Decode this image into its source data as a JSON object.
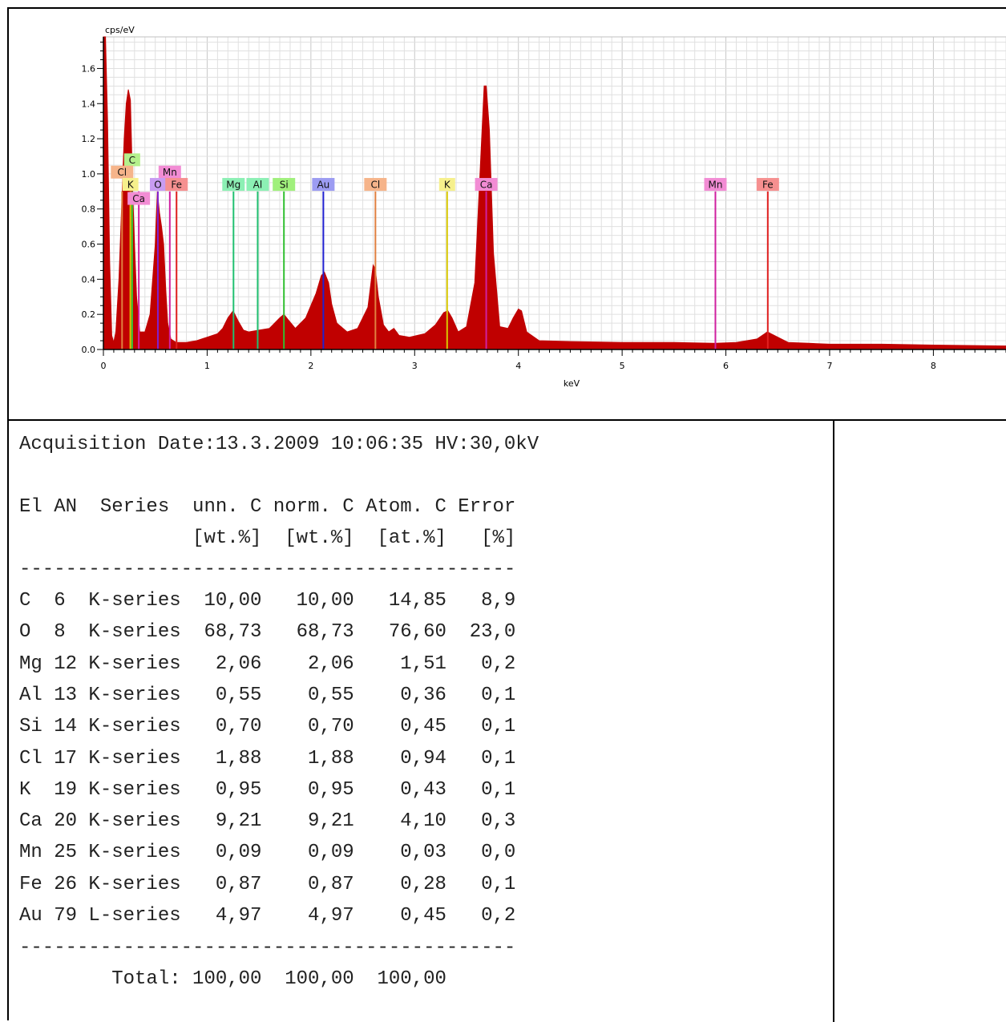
{
  "chart_data": {
    "type": "area",
    "title": "",
    "xlabel": "keV",
    "ylabel": "cps/eV",
    "xlim": [
      0,
      8.7
    ],
    "ylim": [
      0,
      1.78
    ],
    "x_ticks": [
      "0",
      "1",
      "2",
      "3",
      "4",
      "5",
      "6",
      "7",
      "8"
    ],
    "y_ticks": [
      "0.0",
      "0.2",
      "0.4",
      "0.6",
      "0.8",
      "1.0",
      "1.2",
      "1.4",
      "1.6"
    ],
    "grid": true,
    "spectrum_color": "#c00000",
    "series": [
      {
        "x": [
          0.0,
          0.02,
          0.04,
          0.06,
          0.08,
          0.1,
          0.12,
          0.15,
          0.2,
          0.22,
          0.24,
          0.26,
          0.27,
          0.28,
          0.3,
          0.32,
          0.35,
          0.4,
          0.45,
          0.5,
          0.52,
          0.54,
          0.56,
          0.58,
          0.6,
          0.62,
          0.65,
          0.7,
          0.8,
          0.9,
          1.0,
          1.1,
          1.15,
          1.2,
          1.25,
          1.3,
          1.35,
          1.4,
          1.5,
          1.6,
          1.7,
          1.74,
          1.78,
          1.85,
          1.95,
          2.05,
          2.1,
          2.13,
          2.17,
          2.2,
          2.25,
          2.35,
          2.45,
          2.55,
          2.6,
          2.62,
          2.65,
          2.7,
          2.75,
          2.8,
          2.85,
          2.95,
          3.1,
          3.2,
          3.28,
          3.32,
          3.36,
          3.42,
          3.5,
          3.58,
          3.63,
          3.67,
          3.69,
          3.72,
          3.76,
          3.82,
          3.9,
          3.95,
          4.0,
          4.03,
          4.08,
          4.2,
          4.5,
          5.0,
          5.5,
          5.9,
          6.1,
          6.3,
          6.4,
          6.5,
          6.6,
          6.8,
          7.0,
          7.5,
          8.0,
          8.7
        ],
        "y": [
          1.78,
          1.78,
          1.3,
          0.5,
          0.08,
          0.04,
          0.1,
          0.4,
          1.2,
          1.4,
          1.48,
          1.42,
          1.2,
          0.95,
          0.6,
          0.3,
          0.1,
          0.1,
          0.2,
          0.6,
          0.9,
          0.78,
          0.7,
          0.6,
          0.35,
          0.15,
          0.06,
          0.04,
          0.04,
          0.05,
          0.07,
          0.09,
          0.12,
          0.18,
          0.22,
          0.16,
          0.11,
          0.1,
          0.11,
          0.12,
          0.18,
          0.2,
          0.17,
          0.12,
          0.18,
          0.32,
          0.42,
          0.44,
          0.38,
          0.26,
          0.15,
          0.1,
          0.12,
          0.24,
          0.48,
          0.46,
          0.3,
          0.14,
          0.1,
          0.12,
          0.08,
          0.07,
          0.09,
          0.14,
          0.21,
          0.22,
          0.18,
          0.1,
          0.13,
          0.38,
          1.0,
          1.5,
          1.5,
          1.25,
          0.55,
          0.13,
          0.12,
          0.18,
          0.23,
          0.22,
          0.1,
          0.05,
          0.045,
          0.04,
          0.04,
          0.035,
          0.04,
          0.06,
          0.1,
          0.07,
          0.04,
          0.035,
          0.03,
          0.03,
          0.025,
          0.02
        ]
      }
    ],
    "element_markers": [
      {
        "label": "C",
        "energy": 0.277,
        "height": 0.9,
        "color": "#b4f08c",
        "line_color": "#33cc33",
        "label_y": 1.08
      },
      {
        "label": "Cl",
        "energy": 0.18,
        "height": 0.9,
        "color": "#f6b48a",
        "line_color": "#e08040",
        "label_y": 1.01
      },
      {
        "label": "Mn",
        "energy": 0.64,
        "height": 0.9,
        "color": "#f28cd4",
        "line_color": "#d020a0",
        "label_y": 1.01
      },
      {
        "label": "K",
        "energy": 0.26,
        "height": 0.9,
        "color": "#f6f08c",
        "line_color": "#d8c800",
        "label_y": 0.94
      },
      {
        "label": "O",
        "energy": 0.525,
        "height": 0.9,
        "color": "#c89cf2",
        "line_color": "#8020d0",
        "label_y": 0.94
      },
      {
        "label": "Fe",
        "energy": 0.705,
        "height": 0.9,
        "color": "#f69090",
        "line_color": "#e02020",
        "label_y": 0.94
      },
      {
        "label": "Ca",
        "energy": 0.341,
        "height": 0.9,
        "color": "#f28cd4",
        "line_color": "#d020a0",
        "label_y": 0.86
      },
      {
        "label": "Mg",
        "energy": 1.254,
        "height": 0.9,
        "color": "#8cf0b4",
        "line_color": "#20c070",
        "label_y": 0.94
      },
      {
        "label": "Al",
        "energy": 1.487,
        "height": 0.9,
        "color": "#8cf0b4",
        "line_color": "#20c070",
        "label_y": 0.94
      },
      {
        "label": "Si",
        "energy": 1.74,
        "height": 0.9,
        "color": "#a0f07c",
        "line_color": "#30c030",
        "label_y": 0.94
      },
      {
        "label": "Au",
        "energy": 2.12,
        "height": 0.9,
        "color": "#9c9cf2",
        "line_color": "#2020d0",
        "label_y": 0.94
      },
      {
        "label": "Cl",
        "energy": 2.622,
        "height": 0.9,
        "color": "#f6b48a",
        "line_color": "#e08040",
        "label_y": 0.94
      },
      {
        "label": "K",
        "energy": 3.313,
        "height": 0.9,
        "color": "#f6f08c",
        "line_color": "#d8c800",
        "label_y": 0.94
      },
      {
        "label": "Ca",
        "energy": 3.69,
        "height": 0.9,
        "color": "#f28cd4",
        "line_color": "#d020a0",
        "label_y": 0.94
      },
      {
        "label": "Mn",
        "energy": 5.899,
        "height": 0.9,
        "color": "#f28cd4",
        "line_color": "#d020a0",
        "label_y": 0.94
      },
      {
        "label": "Fe",
        "energy": 6.404,
        "height": 0.9,
        "color": "#f69090",
        "line_color": "#e02020",
        "label_y": 0.94
      }
    ]
  },
  "report": {
    "header": "Acquisition Date:13.3.2009 10:06:35 HV:30,0kV",
    "col_header_1": "El AN  Series  unn. C norm. C Atom. C Error",
    "col_header_2": "               [wt.%]  [wt.%]  [at.%]   [%]",
    "divider": "-------------------------------------------",
    "rows": [
      "C  6  K-series  10,00   10,00   14,85   8,9",
      "O  8  K-series  68,73   68,73   76,60  23,0",
      "Mg 12 K-series   2,06    2,06    1,51   0,2",
      "Al 13 K-series   0,55    0,55    0,36   0,1",
      "Si 14 K-series   0,70    0,70    0,45   0,1",
      "Cl 17 K-series   1,88    1,88    0,94   0,1",
      "K  19 K-series   0,95    0,95    0,43   0,1",
      "Ca 20 K-series   9,21    9,21    4,10   0,3",
      "Mn 25 K-series   0,09    0,09    0,03   0,0",
      "Fe 26 K-series   0,87    0,87    0,28   0,1",
      "Au 79 L-series   4,97    4,97    0,45   0,2"
    ],
    "divider_2": "-------------------------------------------",
    "total": "        Total: 100,00  100,00  100,00"
  }
}
